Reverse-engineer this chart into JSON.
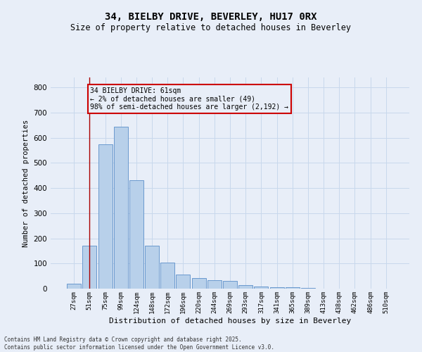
{
  "title_line1": "34, BIELBY DRIVE, BEVERLEY, HU17 0RX",
  "title_line2": "Size of property relative to detached houses in Beverley",
  "xlabel": "Distribution of detached houses by size in Beverley",
  "ylabel": "Number of detached properties",
  "categories": [
    "27sqm",
    "51sqm",
    "75sqm",
    "99sqm",
    "124sqm",
    "148sqm",
    "172sqm",
    "196sqm",
    "220sqm",
    "244sqm",
    "269sqm",
    "293sqm",
    "317sqm",
    "341sqm",
    "365sqm",
    "389sqm",
    "413sqm",
    "438sqm",
    "462sqm",
    "486sqm",
    "510sqm"
  ],
  "values": [
    20,
    170,
    575,
    645,
    430,
    170,
    103,
    57,
    42,
    33,
    30,
    14,
    8,
    5,
    5,
    2,
    1,
    1,
    0,
    0,
    0
  ],
  "bar_color": "#b8d0ea",
  "bar_edge_color": "#5b8fc9",
  "grid_color": "#c8d8ec",
  "background_color": "#e8eef8",
  "vline_x": 1.0,
  "vline_color": "#aa0000",
  "annotation_text": "34 BIELBY DRIVE: 61sqm\n← 2% of detached houses are smaller (49)\n98% of semi-detached houses are larger (2,192) →",
  "annotation_box_color": "#cc0000",
  "ylim": [
    0,
    840
  ],
  "yticks": [
    0,
    100,
    200,
    300,
    400,
    500,
    600,
    700,
    800
  ],
  "footer_line1": "Contains HM Land Registry data © Crown copyright and database right 2025.",
  "footer_line2": "Contains public sector information licensed under the Open Government Licence v3.0."
}
